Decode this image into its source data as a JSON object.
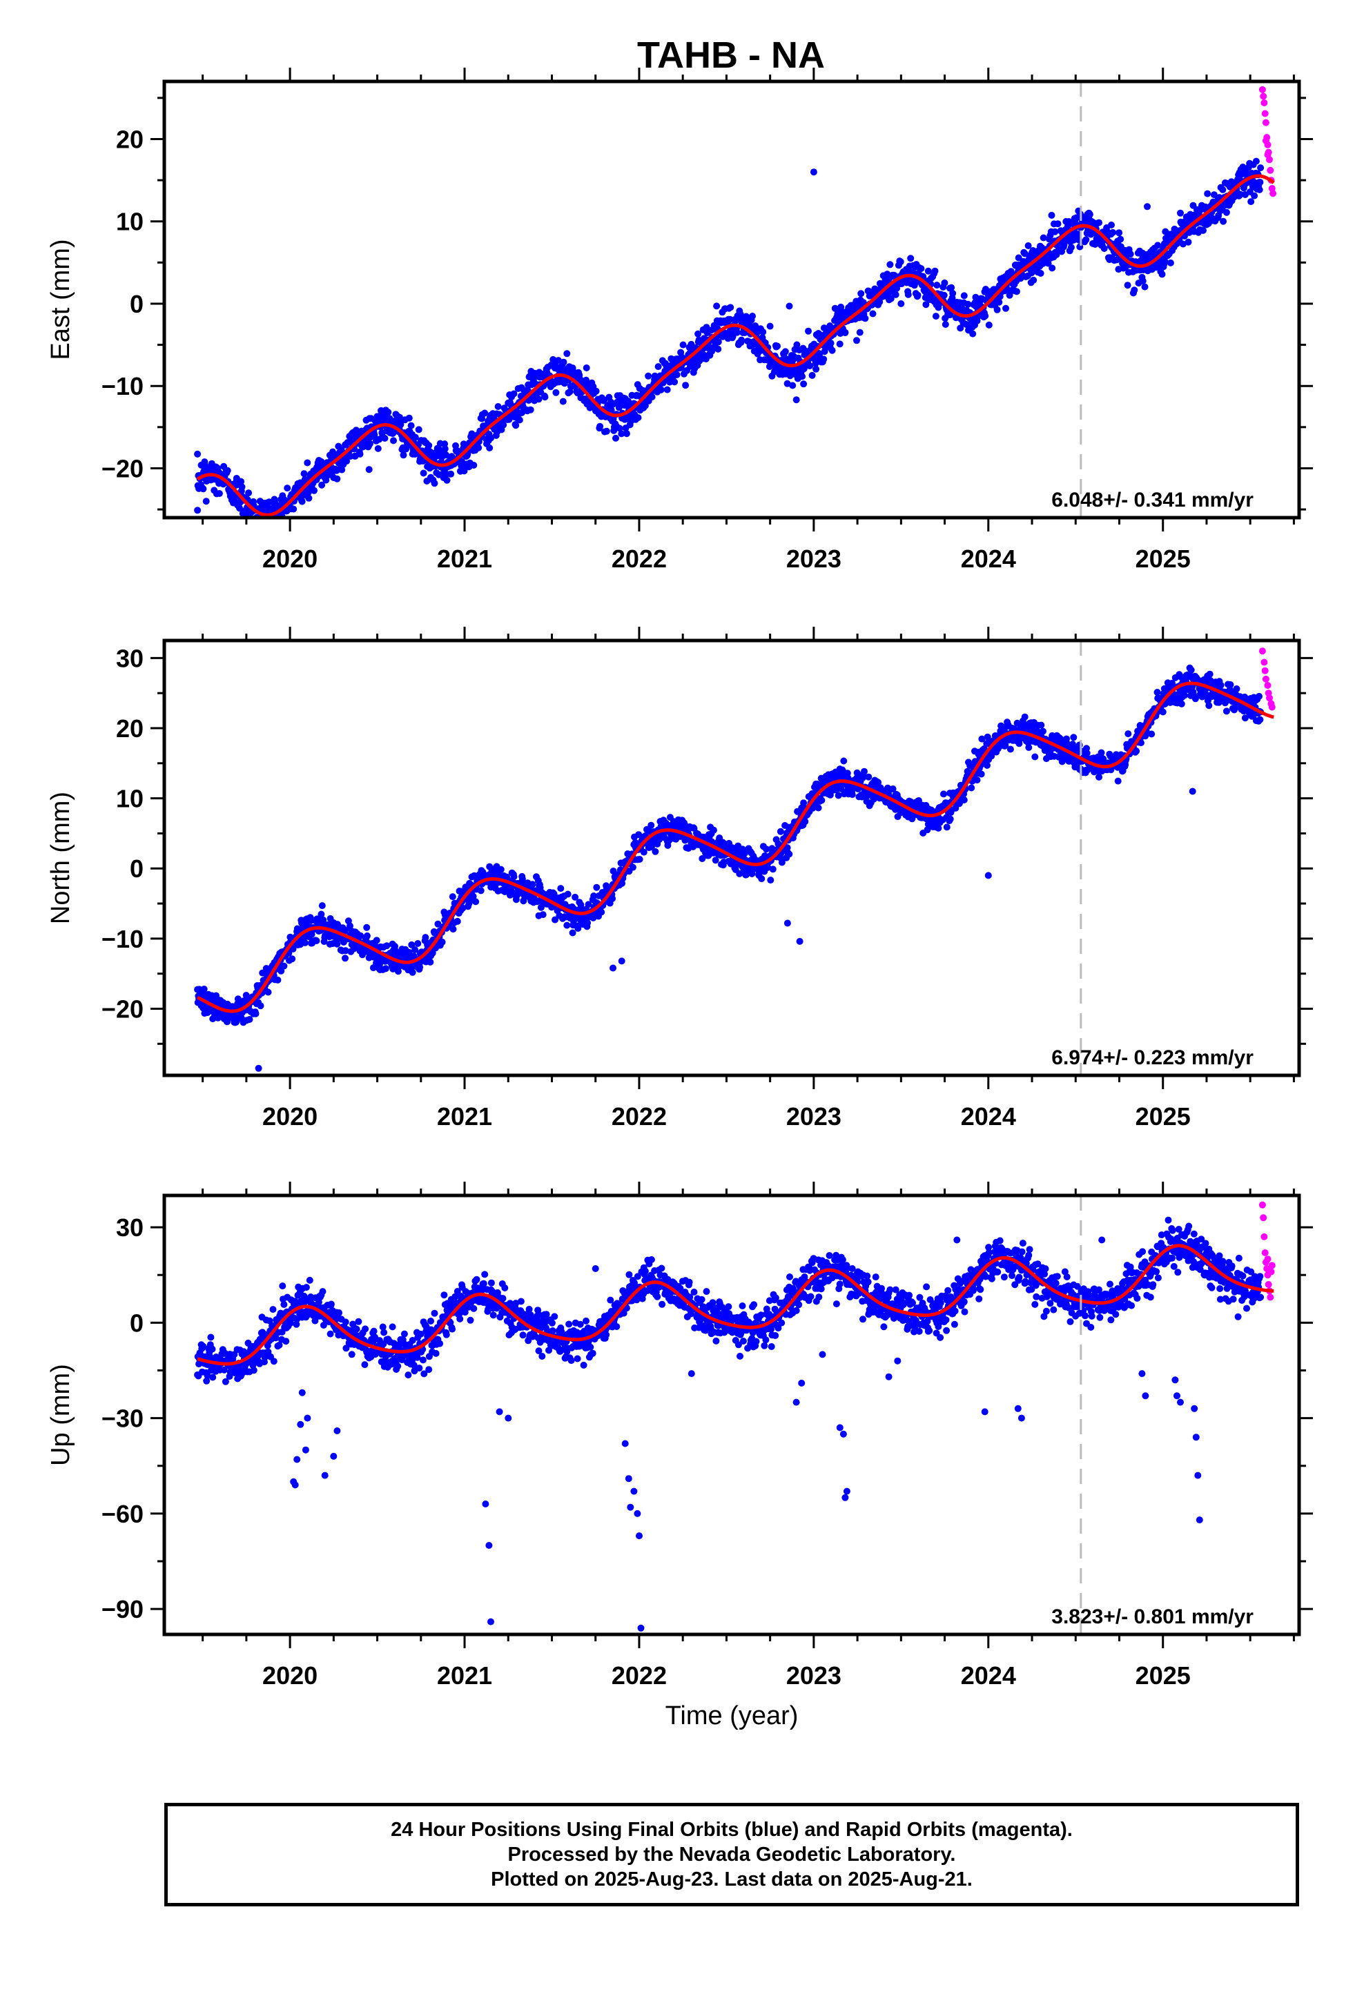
{
  "title": "TAHB - NA",
  "colors": {
    "final": "#0000ff",
    "rapid": "#ff00ff",
    "model": "#ff0000",
    "break_line": "#bbbbbb"
  },
  "chart_data": [
    {
      "type": "scatter",
      "name": "east",
      "ylabel": "East (mm)",
      "xlim": [
        2019.28,
        2025.78
      ],
      "ylim": [
        -26,
        27
      ],
      "yticks": [
        -20,
        -10,
        0,
        10,
        20
      ],
      "ytick_labels": [
        "−20",
        "−10",
        "0",
        "10",
        "20"
      ],
      "xticks": [
        2020,
        2021,
        2022,
        2023,
        2024,
        2025
      ],
      "xtick_labels": [
        "2020",
        "2021",
        "2022",
        "2023",
        "2024",
        "2025"
      ],
      "rate_label": "6.048+/- 0.341 mm/yr",
      "rate": 6.048,
      "break_x": 2024.53,
      "model": {
        "x0": 2019.48,
        "y0": -21.2,
        "rate": 6.048,
        "amp": 3.2,
        "phase": 1.75,
        "amp2": 0.8,
        "phase2": 0.2
      },
      "final_range": [
        2019.47,
        2025.56
      ],
      "rapid_range": [
        2025.56,
        2025.64
      ],
      "noise": 1.1,
      "outliers": [
        [
          2019.47,
          -25.1
        ],
        [
          2019.52,
          -24.0
        ],
        [
          2019.58,
          -23.1
        ],
        [
          2023.0,
          16.0
        ],
        [
          2022.86,
          -0.3
        ],
        [
          2023.14,
          -3.0
        ],
        [
          2023.18,
          -3.5
        ],
        [
          2025.1,
          11.0
        ],
        [
          2024.91,
          11.8
        ],
        [
          2023.5,
          0.0
        ]
      ],
      "rapid_points": [
        [
          2025.57,
          26.0
        ],
        [
          2025.575,
          25.2
        ],
        [
          2025.58,
          24.4
        ],
        [
          2025.585,
          23.1
        ],
        [
          2025.59,
          22.0
        ],
        [
          2025.595,
          20.2
        ],
        [
          2025.6,
          19.3
        ],
        [
          2025.605,
          18.4
        ],
        [
          2025.61,
          17.5
        ],
        [
          2025.615,
          16.2
        ],
        [
          2025.62,
          15.0
        ],
        [
          2025.625,
          14.0
        ],
        [
          2025.63,
          13.4
        ],
        [
          2025.59,
          19.8
        ],
        [
          2025.6,
          18.1
        ]
      ]
    },
    {
      "type": "scatter",
      "name": "north",
      "ylabel": "North (mm)",
      "xlim": [
        2019.28,
        2025.78
      ],
      "ylim": [
        -29.5,
        32.5
      ],
      "yticks": [
        -20,
        -10,
        0,
        10,
        20,
        30
      ],
      "ytick_labels": [
        "−20",
        "−10",
        "0",
        "10",
        "20",
        "30"
      ],
      "xticks": [
        2020,
        2021,
        2022,
        2023,
        2024,
        2025
      ],
      "xtick_labels": [
        "2020",
        "2021",
        "2022",
        "2023",
        "2024",
        "2025"
      ],
      "rate_label": "6.974+/- 0.223 mm/yr",
      "rate": 6.974,
      "break_x": 2024.53,
      "model": {
        "x0": 2019.48,
        "y0": -18.5,
        "rate": 6.974,
        "amp": 4.2,
        "phase": 3.55,
        "amp2": 0.6,
        "phase2": 1.0
      },
      "final_range": [
        2019.47,
        2025.56
      ],
      "rapid_range": [
        2025.56,
        2025.64
      ],
      "noise": 1.0,
      "outliers": [
        [
          2019.82,
          -28.5
        ],
        [
          2022.92,
          -10.4
        ],
        [
          2022.85,
          -7.8
        ],
        [
          2024.0,
          -1.0
        ],
        [
          2025.17,
          11.0
        ],
        [
          2021.85,
          -14.2
        ],
        [
          2021.9,
          -13.2
        ]
      ],
      "rapid_points": [
        [
          2025.57,
          31.0
        ],
        [
          2025.58,
          29.4
        ],
        [
          2025.585,
          28.2
        ],
        [
          2025.59,
          27.0
        ],
        [
          2025.6,
          26.1
        ],
        [
          2025.605,
          25.0
        ],
        [
          2025.61,
          24.3
        ],
        [
          2025.62,
          23.5
        ],
        [
          2025.625,
          23.0
        ]
      ]
    },
    {
      "type": "scatter",
      "name": "up",
      "ylabel": "Up (mm)",
      "xlabel": "Time (year)",
      "xlim": [
        2019.28,
        2025.78
      ],
      "ylim": [
        -98,
        40
      ],
      "yticks": [
        -90,
        -60,
        -30,
        0,
        30
      ],
      "ytick_labels": [
        "−90",
        "−60",
        "−30",
        "0",
        "30"
      ],
      "xticks": [
        2020,
        2021,
        2022,
        2023,
        2024,
        2025
      ],
      "xtick_labels": [
        "2020",
        "2021",
        "2022",
        "2023",
        "2024",
        "2025"
      ],
      "rate_label": "3.823+/- 0.801 mm/yr",
      "rate": 3.823,
      "break_x": 2024.53,
      "model": {
        "x0": 2019.48,
        "y0": -11.5,
        "rate": 3.823,
        "amp": 8.0,
        "phase": 3.95,
        "amp2": 1.4,
        "phase2": 0.6
      },
      "final_range": [
        2019.47,
        2025.56
      ],
      "rapid_range": [
        2025.56,
        2025.64
      ],
      "noise": 3.0,
      "outliers": [
        [
          2020.02,
          -50.0
        ],
        [
          2020.03,
          -51.0
        ],
        [
          2020.04,
          -43.0
        ],
        [
          2020.06,
          -32.0
        ],
        [
          2020.07,
          -22.0
        ],
        [
          2020.09,
          -40.0
        ],
        [
          2020.1,
          -30.0
        ],
        [
          2020.2,
          -48.0
        ],
        [
          2020.25,
          -42.0
        ],
        [
          2020.27,
          -34.0
        ],
        [
          2021.12,
          -57.0
        ],
        [
          2021.14,
          -70.0
        ],
        [
          2021.15,
          -94.0
        ],
        [
          2021.2,
          -28.0
        ],
        [
          2021.25,
          -30.0
        ],
        [
          2021.92,
          -38.0
        ],
        [
          2021.94,
          -49.0
        ],
        [
          2021.95,
          -58.0
        ],
        [
          2021.97,
          -53.0
        ],
        [
          2021.99,
          -60.0
        ],
        [
          2022.0,
          -67.0
        ],
        [
          2022.01,
          -96.0
        ],
        [
          2022.3,
          -16.0
        ],
        [
          2022.9,
          -25.0
        ],
        [
          2022.93,
          -19.0
        ],
        [
          2023.05,
          -10.0
        ],
        [
          2023.15,
          -33.0
        ],
        [
          2023.17,
          -35.0
        ],
        [
          2023.18,
          -55.0
        ],
        [
          2023.19,
          -53.0
        ],
        [
          2023.43,
          -17.0
        ],
        [
          2023.48,
          -12.0
        ],
        [
          2023.82,
          26.0
        ],
        [
          2023.98,
          -28.0
        ],
        [
          2024.17,
          -27.0
        ],
        [
          2024.19,
          -30.0
        ],
        [
          2024.88,
          -16.0
        ],
        [
          2024.9,
          -23.0
        ],
        [
          2025.07,
          -18.0
        ],
        [
          2025.08,
          -23.0
        ],
        [
          2025.1,
          -25.0
        ],
        [
          2025.18,
          -27.0
        ],
        [
          2025.19,
          -36.0
        ],
        [
          2025.2,
          -48.0
        ],
        [
          2025.21,
          -62.0
        ],
        [
          2024.65,
          26.0
        ],
        [
          2021.75,
          17.0
        ]
      ],
      "rapid_points": [
        [
          2025.57,
          37.0
        ],
        [
          2025.575,
          33.0
        ],
        [
          2025.58,
          27.0
        ],
        [
          2025.585,
          22.0
        ],
        [
          2025.59,
          19.0
        ],
        [
          2025.595,
          17.0
        ],
        [
          2025.6,
          15.0
        ],
        [
          2025.605,
          12.0
        ],
        [
          2025.61,
          10.0
        ],
        [
          2025.615,
          8.0
        ],
        [
          2025.62,
          16.0
        ],
        [
          2025.625,
          18.0
        ],
        [
          2025.6,
          20.0
        ]
      ]
    }
  ],
  "footer": {
    "line1": "24 Hour Positions Using Final Orbits (blue) and Rapid Orbits (magenta).",
    "line2": "Processed by the Nevada Geodetic Laboratory.",
    "line3": "Plotted on 2025-Aug-23. Last data on 2025-Aug-21."
  }
}
